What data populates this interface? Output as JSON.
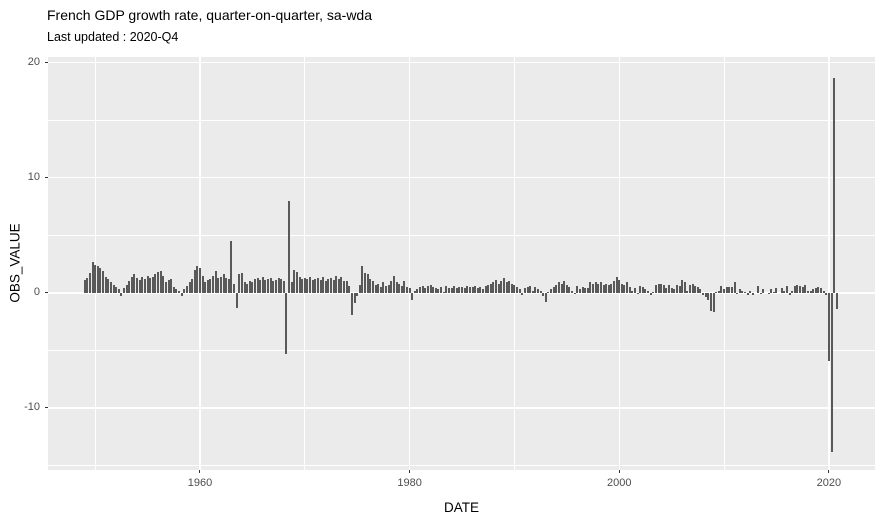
{
  "header": {
    "title": "French GDP growth rate, quarter-on-quarter, sa-wda",
    "subtitle": "Last updated : 2020-Q4"
  },
  "chart_data": {
    "type": "bar",
    "title": "French GDP growth rate, quarter-on-quarter, sa-wda",
    "subtitle": "Last updated : 2020-Q4",
    "xlabel": "DATE",
    "ylabel": "OBS_VALUE",
    "series_name": "OBS_VALUE",
    "frequency": "quarterly",
    "x_start": "1949-Q1",
    "x_end": "2020-Q4",
    "xlim": [
      1945.5,
      2024.4
    ],
    "ylim": [
      -15.4,
      20.5
    ],
    "x_ticks": [
      1960,
      1980,
      2000,
      2020
    ],
    "x_tick_labels": [
      "1960",
      "1980",
      "2000",
      "2020"
    ],
    "x_minor_ticks": [
      1950,
      1970,
      1990,
      2010
    ],
    "y_ticks": [
      -10,
      0,
      10,
      20
    ],
    "y_tick_labels": [
      "-10",
      "0",
      "10",
      "20"
    ],
    "y_minor_ticks": [
      -15,
      -5,
      5,
      15
    ],
    "grid": "on",
    "legend": "none",
    "panel_bg": "#EBEBEB",
    "grid_color": "#FFFFFF",
    "bar_color": "#595959",
    "tick_text_color": "#4D4D4D",
    "notable_points": {
      "1968-Q2": -5.3,
      "1968-Q3": 8.0,
      "2020-Q1": -5.9,
      "2020-Q2": -13.8,
      "2020-Q3": 18.7,
      "2020-Q4": -1.4
    },
    "values": [
      1.1,
      1.3,
      1.7,
      2.7,
      2.4,
      2.3,
      2.2,
      1.9,
      1.4,
      1.2,
      0.9,
      0.7,
      0.5,
      0.3,
      -0.3,
      0.4,
      0.7,
      1.0,
      1.4,
      1.6,
      1.3,
      1.1,
      1.4,
      1.2,
      1.5,
      1.3,
      1.4,
      1.6,
      1.8,
      1.9,
      1.5,
      0.9,
      1.1,
      1.2,
      0.5,
      0.3,
      0.2,
      -0.3,
      0.3,
      0.6,
      0.9,
      1.2,
      2.0,
      2.3,
      2.2,
      1.5,
      0.9,
      1.1,
      1.2,
      1.5,
      1.9,
      1.3,
      1.4,
      1.6,
      1.3,
      1.2,
      4.5,
      0.8,
      -1.3,
      1.6,
      1.7,
      0.9,
      0.8,
      1.0,
      0.9,
      1.2,
      1.3,
      1.1,
      1.4,
      1.1,
      1.2,
      1.3,
      1.0,
      1.1,
      1.3,
      1.2,
      1.0,
      -5.3,
      8.0,
      0.9,
      2.0,
      1.8,
      1.4,
      1.2,
      1.3,
      1.2,
      1.4,
      1.1,
      1.2,
      1.3,
      1.1,
      1.4,
      1.0,
      1.2,
      1.3,
      1.1,
      1.5,
      1.2,
      1.4,
      1.0,
      1.0,
      0.6,
      -1.9,
      -0.9,
      -0.3,
      0.7,
      2.3,
      1.7,
      1.6,
      1.2,
      1.0,
      0.7,
      0.8,
      0.5,
      0.9,
      0.6,
      0.7,
      1.0,
      1.5,
      0.9,
      0.8,
      0.6,
      1.0,
      0.5,
      0.4,
      -0.6,
      0.2,
      0.3,
      0.5,
      0.6,
      0.4,
      0.6,
      0.7,
      0.5,
      0.4,
      0.3,
      0.5,
      0.1,
      0.6,
      0.4,
      0.4,
      0.6,
      0.4,
      0.5,
      0.5,
      0.4,
      0.6,
      0.5,
      0.5,
      0.6,
      0.4,
      0.5,
      0.3,
      0.6,
      0.7,
      0.8,
      0.9,
      1.1,
      0.8,
      1.0,
      1.3,
      0.9,
      1.0,
      0.8,
      0.7,
      0.5,
      0.3,
      -0.2,
      0.4,
      0.5,
      0.6,
      0.2,
      0.5,
      0.3,
      0.2,
      -0.3,
      -0.8,
      0.1,
      0.3,
      0.5,
      0.7,
      0.9,
      0.8,
      1.0,
      0.7,
      0.5,
      0.2,
      -0.1,
      0.6,
      0.3,
      0.5,
      0.4,
      0.4,
      0.9,
      0.8,
      0.9,
      0.8,
      0.9,
      0.7,
      0.8,
      0.7,
      0.8,
      1.0,
      1.4,
      1.1,
      0.8,
      0.7,
      0.9,
      0.5,
      0.2,
      0.4,
      -0.1,
      0.6,
      0.5,
      0.3,
      0.2,
      -0.2,
      0.1,
      0.7,
      0.8,
      0.8,
      0.7,
      0.4,
      0.7,
      0.4,
      0.3,
      0.7,
      0.6,
      1.1,
      0.9,
      0.2,
      0.7,
      0.8,
      0.6,
      0.5,
      0.3,
      -0.2,
      -0.4,
      -0.6,
      -1.6,
      -1.7,
      0.1,
      0.2,
      0.6,
      0.3,
      0.5,
      0.5,
      0.5,
      0.9,
      -0.1,
      0.3,
      0.2,
      0.1,
      -0.2,
      0.2,
      -0.2,
      0.0,
      0.6,
      -0.1,
      0.3,
      0.0,
      -0.1,
      0.3,
      0.1,
      0.4,
      0.0,
      0.4,
      0.2,
      0.6,
      -0.2,
      0.2,
      0.6,
      0.7,
      0.6,
      0.5,
      0.7,
      0.2,
      0.2,
      0.3,
      0.4,
      0.5,
      0.4,
      0.2,
      -0.2,
      -5.9,
      -13.8,
      18.7,
      -1.4
    ],
    "start_year": 1949,
    "start_quarter": 1
  }
}
